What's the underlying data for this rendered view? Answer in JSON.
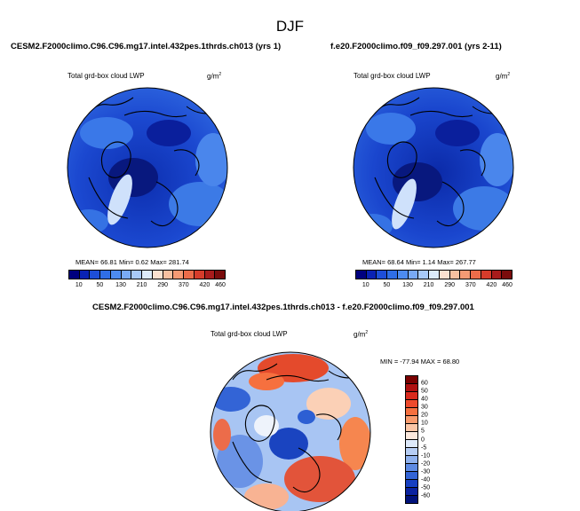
{
  "figure": {
    "title": "DJF"
  },
  "panel_left": {
    "case": "CESM2.F2000climo.C96.C96.mg17.intel.432pes.1thrds.ch013 (yrs 1)",
    "variable": "Total grd-box cloud LWP",
    "units": "g/m",
    "units_exp": "2",
    "stats": "MEAN=  66.81  Min=   0.62  Max=  281.74"
  },
  "panel_right": {
    "case": "f.e20.F2000climo.f09_f09.297.001 (yrs 2-11)",
    "variable": "Total grd-box cloud LWP",
    "units": "g/m",
    "units_exp": "2",
    "stats": "MEAN=  68.64  Min=   1.14  Max=  267.77"
  },
  "panel_diff": {
    "case": "CESM2.F2000climo.C96.C96.mg17.intel.432pes.1thrds.ch013 - f.e20.F2000climo.f09_f09.297.001",
    "variable": "Total grd-box cloud LWP",
    "units": "g/m",
    "units_exp": "2",
    "stats": "MIN = -77.94 MAX =  68.80"
  },
  "colorbar_abs": {
    "labels": [
      "10",
      "50",
      "130",
      "210",
      "290",
      "370",
      "420",
      "460"
    ],
    "colors": [
      "#00007f",
      "#0a22b4",
      "#1d4ed8",
      "#2f6ee6",
      "#4d8bf0",
      "#79aaf5",
      "#a8c9f8",
      "#dcebfb",
      "#fbe1d0",
      "#f8c0a0",
      "#f59a74",
      "#ec6c4a",
      "#d63c2b",
      "#a81c1c",
      "#7a0c0c"
    ]
  },
  "colorbar_diff": {
    "labels": [
      "60",
      "50",
      "40",
      "30",
      "20",
      "10",
      "5",
      "0",
      "-5",
      "-10",
      "-20",
      "-30",
      "-40",
      "-50",
      "-60"
    ],
    "colors": [
      "#7a0000",
      "#b01010",
      "#d92a1d",
      "#ee4a2c",
      "#f6703f",
      "#f99b6d",
      "#fbc6a6",
      "#fbe8dc",
      "#dde9fa",
      "#b6cdf4",
      "#8fb1ee",
      "#5d8ae3",
      "#3364d6",
      "#1740c2",
      "#0a22a0",
      "#00117a"
    ]
  }
}
